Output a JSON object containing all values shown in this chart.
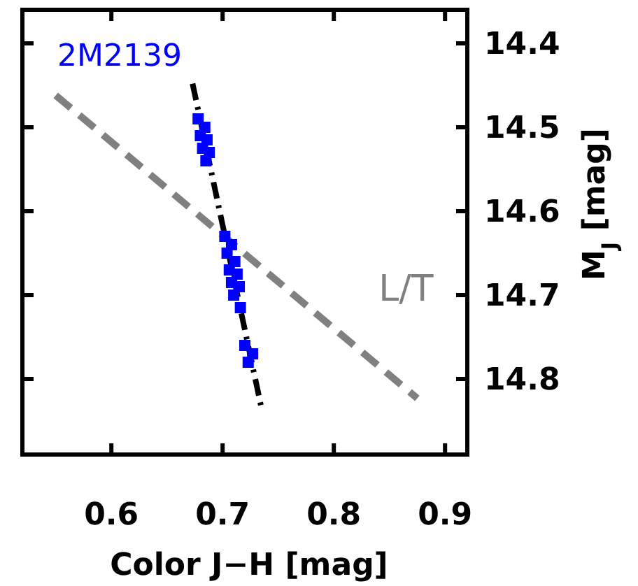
{
  "chart_data": {
    "type": "scatter",
    "xlabel": "Color J−H [mag]",
    "ylabel": "M$_{J}$ [mag]",
    "xlim": [
      0.52,
      0.92
    ],
    "xticks": [
      0.6,
      0.7,
      0.8,
      0.9
    ],
    "ylim": [
      14.89,
      14.36
    ],
    "yticks": [
      14.4,
      14.5,
      14.6,
      14.7,
      14.8
    ],
    "grid": false,
    "legend": false,
    "series": [
      {
        "type": "line",
        "name": "L/T",
        "color": "#808080",
        "line_style": "dashed",
        "marker": "none",
        "x": [
          0.55,
          0.875
        ],
        "values": [
          14.462,
          14.823
        ]
      },
      {
        "type": "line",
        "color": "#000000",
        "line_style": "dashed",
        "marker": "none",
        "x": [
          0.673,
          0.735
        ],
        "values": [
          14.448,
          14.835
        ]
      },
      {
        "name": "2M2139",
        "color": "#0000ff",
        "marker": "square",
        "x": [
          0.678,
          0.684,
          0.68,
          0.686,
          0.682,
          0.688,
          0.685,
          0.702,
          0.708,
          0.704,
          0.711,
          0.706,
          0.713,
          0.708,
          0.715,
          0.71,
          0.716,
          0.72,
          0.727,
          0.723
        ],
        "values": [
          14.49,
          14.5,
          14.51,
          14.515,
          14.525,
          14.53,
          14.54,
          14.63,
          14.64,
          14.65,
          14.66,
          14.67,
          14.675,
          14.685,
          14.69,
          14.7,
          14.715,
          14.76,
          14.77,
          14.78
        ]
      }
    ]
  }
}
